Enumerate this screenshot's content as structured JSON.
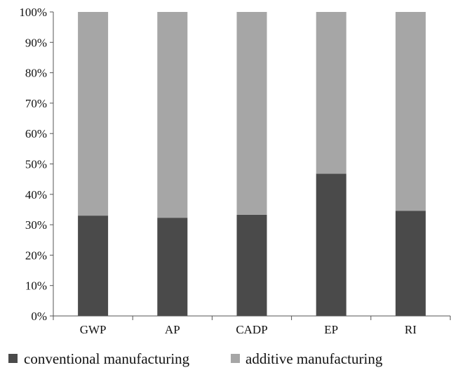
{
  "chart_data": {
    "type": "bar",
    "stacked": true,
    "normalized": "percent",
    "categories": [
      "GWP",
      "AP",
      "CADP",
      "EP",
      "RI"
    ],
    "series": [
      {
        "name": "conventional manufacturing",
        "values": [
          33,
          32.3,
          33.3,
          46.8,
          34.6
        ],
        "color": "#4a4a4a"
      },
      {
        "name": "additive manufacturing",
        "values": [
          67,
          67.7,
          66.7,
          53.2,
          65.4
        ],
        "color": "#a6a6a6"
      }
    ],
    "yticks": [
      "0%",
      "10%",
      "20%",
      "30%",
      "40%",
      "50%",
      "60%",
      "70%",
      "80%",
      "90%",
      "100%"
    ],
    "ylim": [
      0,
      100
    ],
    "grid": false,
    "legend_position": "bottom",
    "title": "",
    "xlabel": "",
    "ylabel": ""
  }
}
